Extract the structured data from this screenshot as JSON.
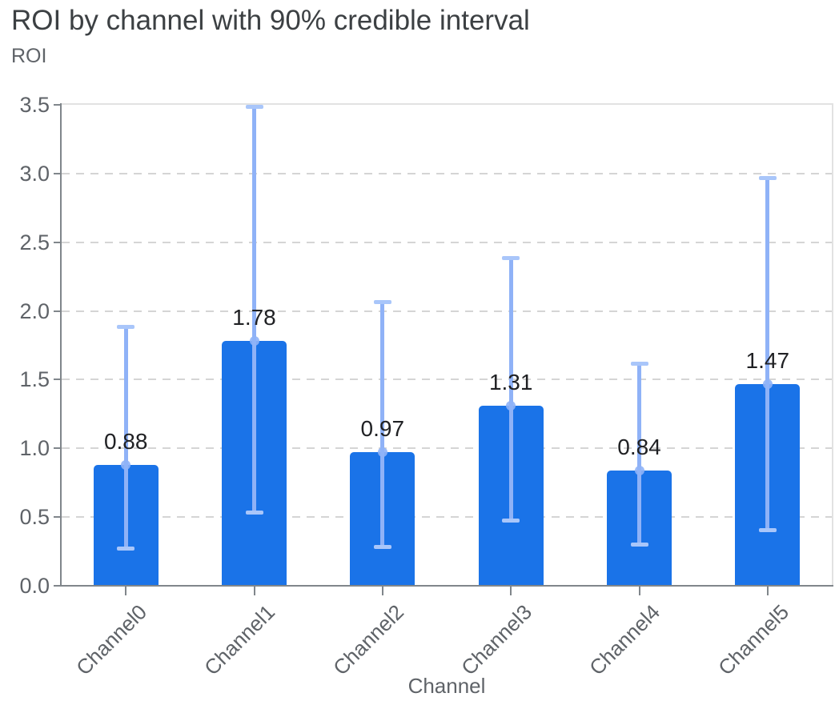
{
  "colors": {
    "bar": "#1a73e8",
    "error_bar": "#8fb2f7",
    "error_cap": "#a9c6fa",
    "grid": "#d5d5d5",
    "axis": "#80868b",
    "plot_border": "#e2e2e2",
    "title": "#3c4043",
    "axis_text": "#5f6368",
    "value_label": "#202124",
    "background": "#ffffff"
  },
  "chart_data": {
    "type": "bar",
    "title": "ROI by channel with 90% credible interval",
    "ylabel": "ROI",
    "xlabel": "Channel",
    "categories": [
      "Channel0",
      "Channel1",
      "Channel2",
      "Channel3",
      "Channel4",
      "Channel5"
    ],
    "values": [
      0.88,
      1.78,
      0.97,
      1.31,
      0.84,
      1.47
    ],
    "bar_labels": [
      "0.88",
      "1.78",
      "0.97",
      "1.31",
      "0.84",
      "1.47"
    ],
    "ci_low": [
      0.27,
      0.53,
      0.28,
      0.47,
      0.3,
      0.4
    ],
    "ci_high": [
      1.89,
      3.49,
      2.07,
      2.39,
      1.62,
      2.97
    ],
    "interval_label": "90% credible interval",
    "ylim": [
      0,
      3.5
    ],
    "yticks": [
      "0.0",
      "0.5",
      "1.0",
      "1.5",
      "2.0",
      "2.5",
      "3.0",
      "3.5"
    ],
    "grid": true,
    "legend": "none"
  }
}
